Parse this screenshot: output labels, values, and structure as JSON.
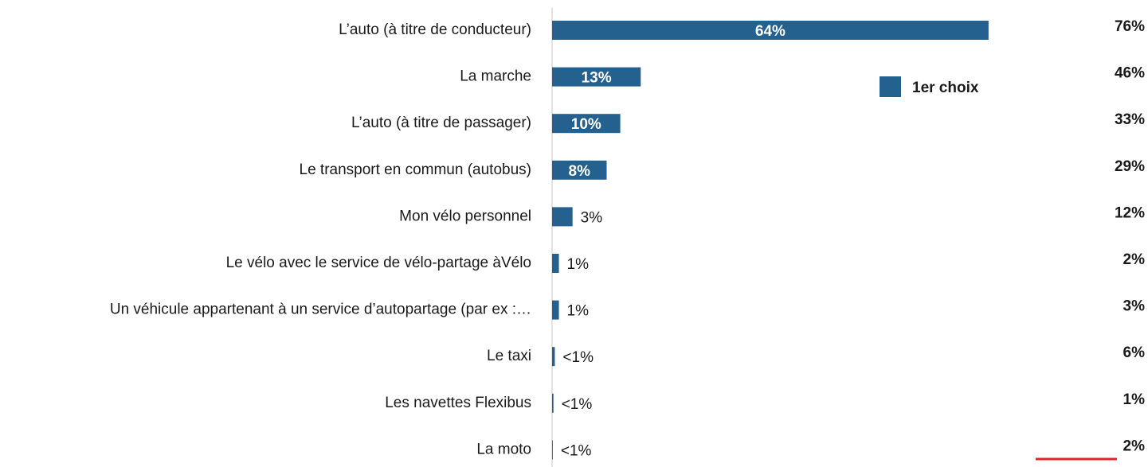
{
  "chart_data": {
    "type": "bar",
    "orientation": "horizontal",
    "categories": [
      "L’auto (à titre de conducteur)",
      "La marche",
      "L’auto (à titre de passager)",
      "Le transport en commun (autobus)",
      "Mon vélo personnel",
      "Le vélo avec le service de vélo-partage àVélo",
      "Un véhicule appartenant à un service d’autopartage (par ex :…",
      "Le taxi",
      "Les navettes Flexibus",
      "La moto"
    ],
    "series": [
      {
        "name": "1er choix",
        "color": "#25618f",
        "values": [
          64,
          13,
          10,
          8,
          3,
          1,
          1,
          0.4,
          0.2,
          0.1
        ],
        "value_labels": [
          "64%",
          "13%",
          "10%",
          "8%",
          "3%",
          "1%",
          "1%",
          "<1%",
          "<1%",
          "<1%"
        ]
      }
    ],
    "totals": [
      76,
      46,
      33,
      29,
      12,
      2,
      3,
      6,
      1,
      2
    ],
    "totals_labels": [
      "76%",
      "46%",
      "33%",
      "29%",
      "12%",
      "2%",
      "3%",
      "6%",
      "1%",
      "2%"
    ],
    "xlim": [
      0,
      100
    ],
    "legend": "top-right"
  }
}
